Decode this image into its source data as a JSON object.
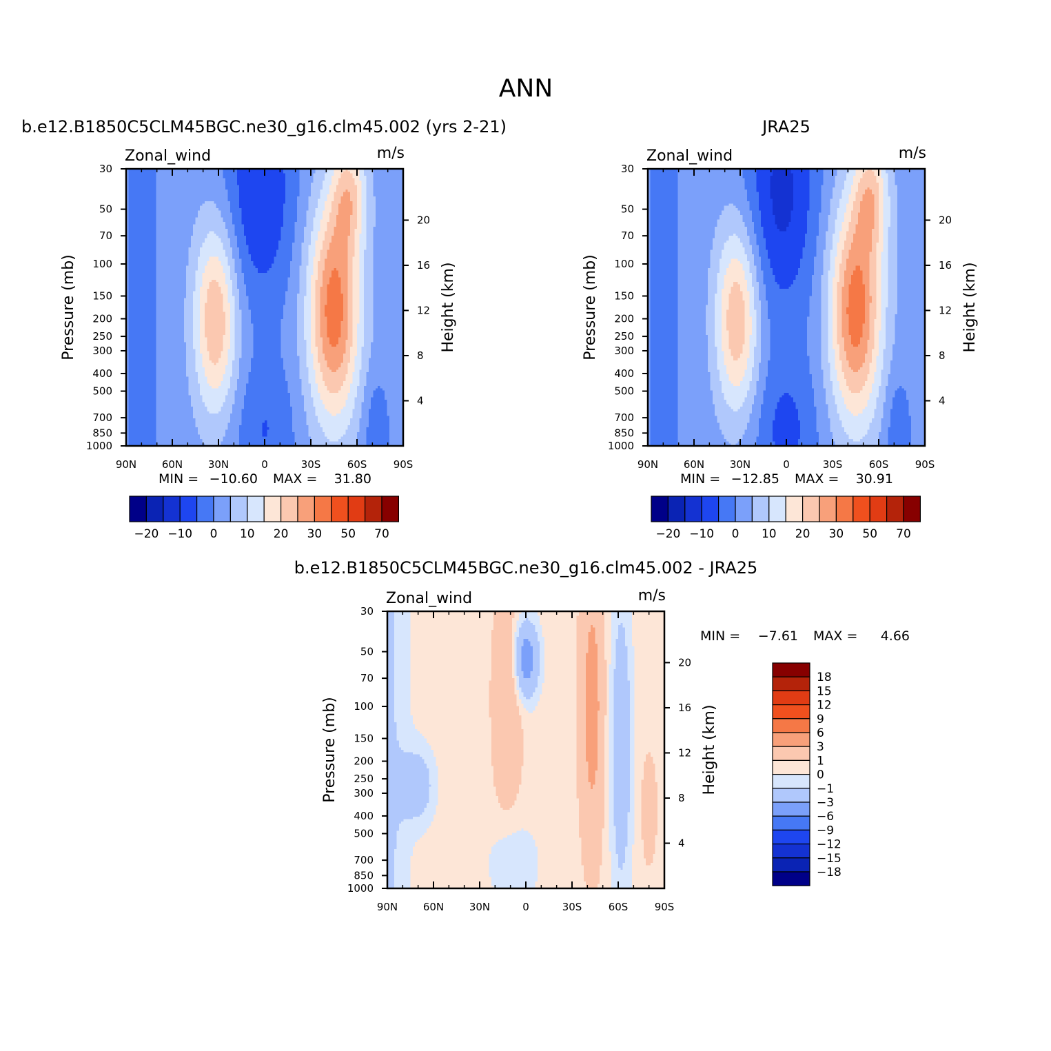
{
  "figure": {
    "title": "ANN"
  },
  "chart_data": [
    {
      "type": "heatmap",
      "title": "b.e12.B1850C5CLM45BGC.ne30_g16.clm45.002 (yrs 2-21)",
      "variable": "Zonal_wind",
      "units": "m/s",
      "xlabel": "",
      "ylabel": "Pressure (mb)",
      "ylabel_right": "Height (km)",
      "x_ticks": [
        "90N",
        "60N",
        "30N",
        "0",
        "30S",
        "60S",
        "90S"
      ],
      "y_ticks": [
        "30",
        "50",
        "70",
        "100",
        "150",
        "200",
        "250",
        "300",
        "400",
        "500",
        "700",
        "850",
        "1000"
      ],
      "y_right_ticks": [
        "20",
        "16",
        "12",
        "8",
        "4"
      ],
      "ylim": [
        1000,
        30
      ],
      "xlim": [
        90,
        -90
      ],
      "min_label": "MIN =",
      "min_value": "-10.60",
      "max_label": "MAX =",
      "max_value": "31.80",
      "colorbar_labels": [
        "-20",
        "-10",
        "0",
        "10",
        "20",
        "30",
        "50",
        "70"
      ]
    },
    {
      "type": "heatmap",
      "title": "JRA25",
      "variable": "Zonal_wind",
      "units": "m/s",
      "xlabel": "",
      "ylabel": "Pressure (mb)",
      "ylabel_right": "Height (km)",
      "x_ticks": [
        "90N",
        "60N",
        "30N",
        "0",
        "30S",
        "60S",
        "90S"
      ],
      "y_ticks": [
        "30",
        "50",
        "70",
        "100",
        "150",
        "200",
        "250",
        "300",
        "400",
        "500",
        "700",
        "850",
        "1000"
      ],
      "y_right_ticks": [
        "20",
        "16",
        "12",
        "8",
        "4"
      ],
      "ylim": [
        1000,
        30
      ],
      "xlim": [
        90,
        -90
      ],
      "min_label": "MIN =",
      "min_value": "-12.85",
      "max_label": "MAX =",
      "max_value": "30.91",
      "colorbar_labels": [
        "-20",
        "-10",
        "0",
        "10",
        "20",
        "30",
        "50",
        "70"
      ]
    },
    {
      "type": "heatmap",
      "title": "b.e12.B1850C5CLM45BGC.ne30_g16.clm45.002 - JRA25",
      "variable": "Zonal_wind",
      "units": "m/s",
      "xlabel": "",
      "ylabel": "Pressure (mb)",
      "ylabel_right": "Height (km)",
      "x_ticks": [
        "90N",
        "60N",
        "30N",
        "0",
        "30S",
        "60S",
        "90S"
      ],
      "y_ticks": [
        "30",
        "50",
        "70",
        "100",
        "150",
        "200",
        "250",
        "300",
        "400",
        "500",
        "700",
        "850",
        "1000"
      ],
      "y_right_ticks": [
        "20",
        "16",
        "12",
        "8",
        "4"
      ],
      "ylim": [
        1000,
        30
      ],
      "xlim": [
        90,
        -90
      ],
      "min_label": "MIN =",
      "min_value": "-7.61",
      "max_label": "MAX =",
      "max_value": "4.66",
      "colorbar_labels": [
        "18",
        "15",
        "12",
        "9",
        "6",
        "3",
        "1",
        "0",
        "-1",
        "-3",
        "-6",
        "-9",
        "-12",
        "-15",
        "-18"
      ]
    }
  ],
  "palette": [
    "#000088",
    "#0a23b4",
    "#1432d2",
    "#1e46f0",
    "#4678f5",
    "#7ba0fa",
    "#b0c8fc",
    "#d7e6fd",
    "#fde6d7",
    "#fbc8b0",
    "#f8a07a",
    "#f57846",
    "#f0501e",
    "#e13c14",
    "#b4230a",
    "#870000"
  ]
}
